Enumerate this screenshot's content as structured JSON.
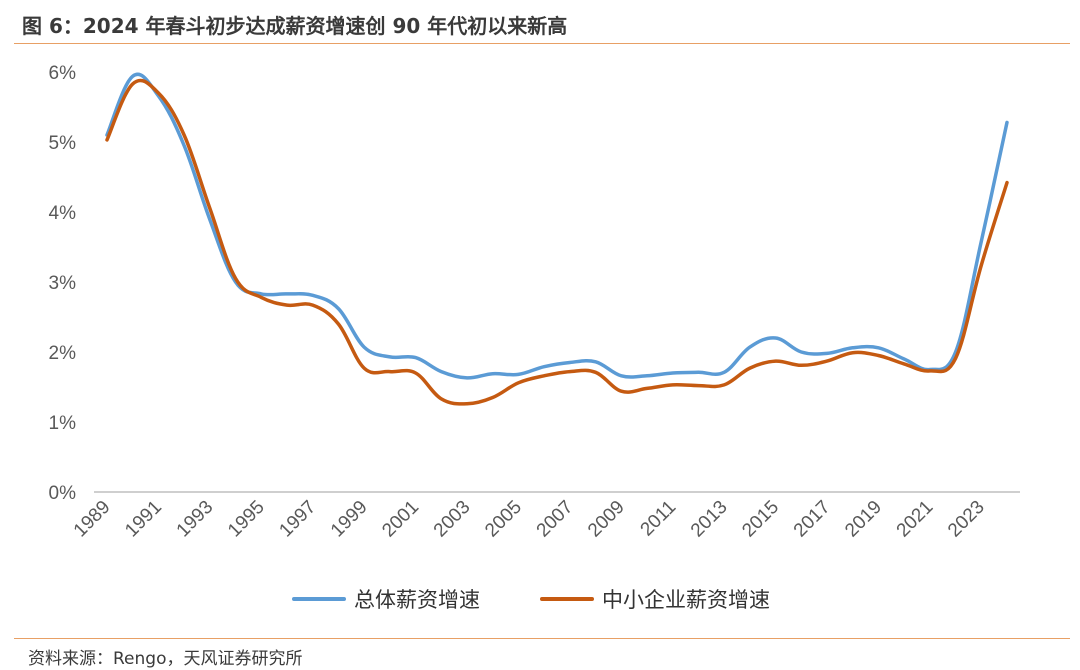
{
  "header": {
    "title": "图 6：2024 年春斗初步达成薪资增速创 90 年代初以来新高"
  },
  "footer": {
    "source": "资料来源：Rengo，天风证券研究所"
  },
  "colors": {
    "series_total": "#5b9bd5",
    "series_sme": "#c55a11",
    "rule": "#e8a065",
    "axis": "#bfbfbf"
  },
  "chart_data": {
    "type": "line",
    "x_tick_labels": [
      "1989",
      "1991",
      "1993",
      "1995",
      "1997",
      "1999",
      "2001",
      "2003",
      "2005",
      "2007",
      "2009",
      "2011",
      "2013",
      "2015",
      "2017",
      "2019",
      "2021",
      "2023"
    ],
    "y_tick_labels": [
      "0%",
      "1%",
      "2%",
      "3%",
      "4%",
      "5%",
      "6%"
    ],
    "ylim": [
      0,
      6
    ],
    "grid": false,
    "legend": "bottom",
    "x": [
      1989,
      1990,
      1991,
      1992,
      1993,
      1994,
      1995,
      1996,
      1997,
      1998,
      1999,
      2000,
      2001,
      2002,
      2003,
      2004,
      2005,
      2006,
      2007,
      2008,
      2009,
      2010,
      2011,
      2012,
      2013,
      2014,
      2015,
      2016,
      2017,
      2018,
      2019,
      2020,
      2021,
      2022,
      2023,
      2024
    ],
    "series": [
      {
        "name": "总体薪资增速",
        "values": [
          5.1,
          5.94,
          5.66,
          4.95,
          3.89,
          3.0,
          2.83,
          2.83,
          2.81,
          2.62,
          2.07,
          1.93,
          1.92,
          1.72,
          1.63,
          1.69,
          1.68,
          1.79,
          1.85,
          1.86,
          1.66,
          1.66,
          1.7,
          1.71,
          1.71,
          2.07,
          2.2,
          2.0,
          1.98,
          2.06,
          2.06,
          1.9,
          1.75,
          2.0,
          3.58,
          5.28
        ]
      },
      {
        "name": "中小企业薪资增速",
        "values": [
          5.03,
          5.83,
          5.7,
          5.1,
          4.05,
          3.05,
          2.78,
          2.67,
          2.67,
          2.4,
          1.77,
          1.72,
          1.7,
          1.33,
          1.26,
          1.35,
          1.56,
          1.66,
          1.72,
          1.71,
          1.44,
          1.48,
          1.53,
          1.52,
          1.53,
          1.77,
          1.87,
          1.81,
          1.87,
          1.99,
          1.95,
          1.83,
          1.73,
          1.91,
          3.24,
          4.42
        ]
      }
    ]
  }
}
